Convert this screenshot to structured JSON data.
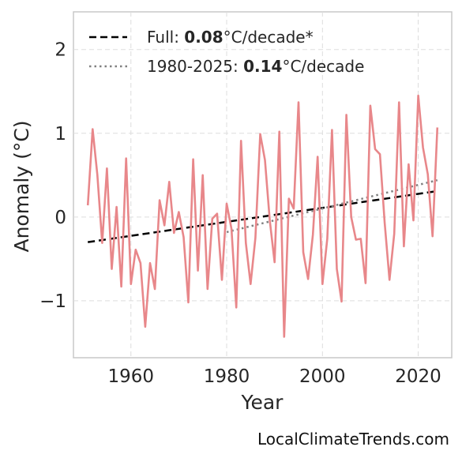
{
  "chart_data": {
    "type": "line",
    "title": "",
    "xlabel": "Year",
    "ylabel": "Anomaly (°C)",
    "xlim": [
      1948,
      2027
    ],
    "ylim": [
      -1.68,
      2.45
    ],
    "x_ticks": [
      1960,
      1980,
      2000,
      2020
    ],
    "y_ticks": [
      -1,
      0,
      1,
      2
    ],
    "y_tick_labels": [
      "−1",
      "0",
      "1",
      "2"
    ],
    "grid": true,
    "legend_position": "top-left",
    "series": [
      {
        "color": "#e8878a",
        "x": [
          1951,
          1952,
          1953,
          1954,
          1955,
          1956,
          1957,
          1958,
          1959,
          1960,
          1961,
          1962,
          1963,
          1964,
          1965,
          1966,
          1967,
          1968,
          1969,
          1970,
          1971,
          1972,
          1973,
          1974,
          1975,
          1976,
          1977,
          1978,
          1979,
          1980,
          1981,
          1982,
          1983,
          1984,
          1985,
          1986,
          1987,
          1988,
          1989,
          1990,
          1991,
          1992,
          1993,
          1994,
          1995,
          1996,
          1997,
          1998,
          1999,
          2000,
          2001,
          2002,
          2003,
          2004,
          2005,
          2006,
          2007,
          2008,
          2009,
          2010,
          2011,
          2012,
          2013,
          2014,
          2015,
          2016,
          2017,
          2018,
          2019,
          2020,
          2021,
          2022,
          2023,
          2024
        ],
        "y": [
          0.14,
          1.05,
          0.5,
          -0.31,
          0.58,
          -0.62,
          0.12,
          -0.83,
          0.7,
          -0.8,
          -0.39,
          -0.55,
          -1.31,
          -0.55,
          -0.86,
          0.2,
          -0.1,
          0.42,
          -0.19,
          0.06,
          -0.24,
          -1.02,
          0.69,
          -0.64,
          0.5,
          -0.86,
          -0.02,
          0.04,
          -0.75,
          0.16,
          -0.14,
          -1.08,
          0.91,
          -0.31,
          -0.8,
          -0.25,
          0.99,
          0.68,
          -0.04,
          -0.54,
          1.02,
          -1.43,
          0.22,
          0.1,
          1.37,
          -0.42,
          -0.74,
          -0.21,
          0.72,
          -0.8,
          -0.26,
          1.04,
          -0.62,
          -1.01,
          1.22,
          0.0,
          -0.27,
          -0.26,
          -0.79,
          1.33,
          0.81,
          0.75,
          -0.07,
          -0.75,
          -0.2,
          1.37,
          -0.35,
          0.63,
          -0.04,
          1.45,
          0.83,
          0.51,
          -0.23,
          1.07
        ]
      }
    ],
    "trends": [
      {
        "name": "Full",
        "rate": "0.08",
        "suffix": "°C/decade*",
        "x": [
          1951,
          2024
        ],
        "y": [
          -0.3,
          0.31
        ],
        "color": "#000000",
        "style": "dashed"
      },
      {
        "name": "1980-2025",
        "rate": "0.14",
        "suffix": "°C/decade",
        "x": [
          1980,
          2024
        ],
        "y": [
          -0.18,
          0.44
        ],
        "color": "#808080",
        "style": "dotted"
      }
    ]
  },
  "source": "LocalClimateTrends.com"
}
